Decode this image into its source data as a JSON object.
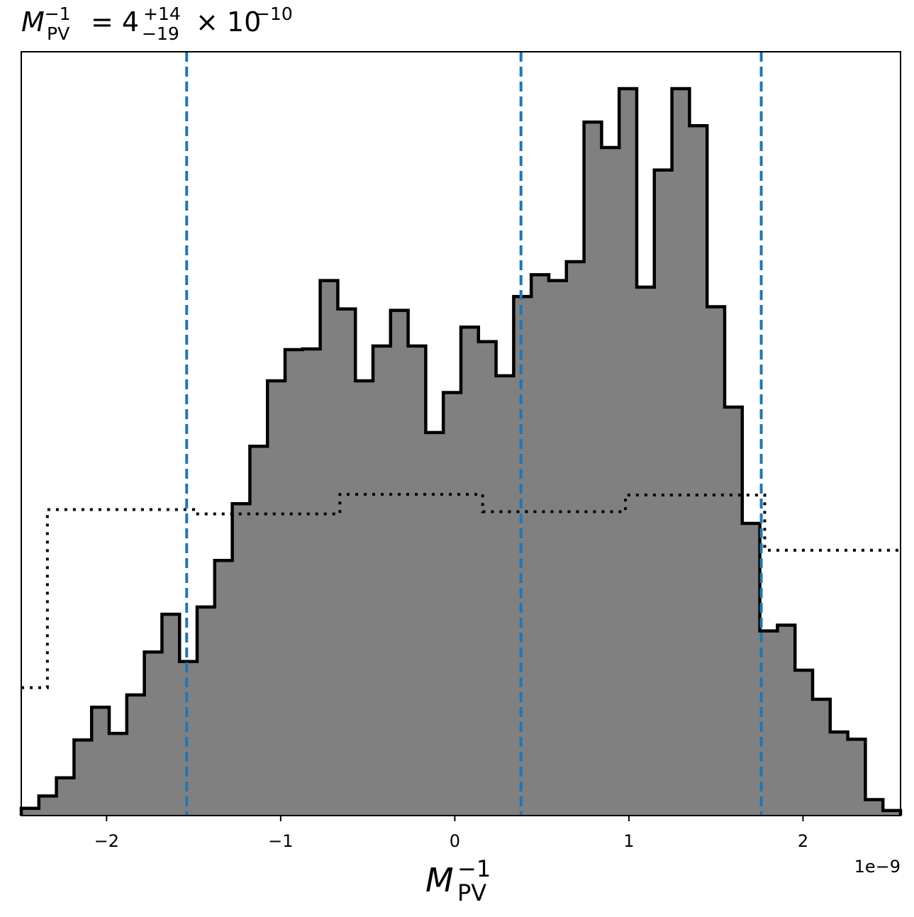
{
  "chart_data": {
    "type": "histogram",
    "title": {
      "symbol": "M",
      "symbol_sup": "−1",
      "symbol_sub": "PV",
      "equals": "= 4",
      "err_plus": "+14",
      "err_minus": "−19",
      "times": "× 10",
      "exponent": "−10"
    },
    "xlabel": {
      "symbol": "M",
      "sup": "−1",
      "sub": "PV"
    },
    "x_offset_label": "1e−9",
    "x_unit": "1e-9",
    "xlim": [
      -2.49,
      2.56
    ],
    "ylim": [
      0,
      1000
    ],
    "yticks_visible": false,
    "grid": false,
    "x_ticks": [
      -2,
      -1,
      0,
      1,
      2
    ],
    "x_tick_labels": [
      "−2",
      "−1",
      "0",
      "1",
      "2"
    ],
    "posterior": {
      "style": "filled step",
      "fill_color": "#808080",
      "edge_color": "#000000",
      "bin_edges": [
        -2.49,
        -2.389,
        -2.288,
        -2.187,
        -2.086,
        -1.985,
        -1.884,
        -1.783,
        -1.682,
        -1.581,
        -1.48,
        -1.379,
        -1.278,
        -1.177,
        -1.076,
        -0.975,
        -0.874,
        -0.773,
        -0.672,
        -0.571,
        -0.47,
        -0.369,
        -0.268,
        -0.167,
        -0.066,
        0.035,
        0.136,
        0.237,
        0.338,
        0.439,
        0.54,
        0.641,
        0.742,
        0.843,
        0.944,
        1.045,
        1.146,
        1.247,
        1.348,
        1.449,
        1.55,
        1.651,
        1.752,
        1.853,
        1.954,
        2.055,
        2.156,
        2.257,
        2.358,
        2.459,
        2.56
      ],
      "counts": [
        10,
        27,
        52,
        104,
        149,
        113,
        166,
        225,
        277,
        212,
        287,
        351,
        429,
        508,
        598,
        641,
        642,
        736,
        697,
        598,
        646,
        695,
        646,
        527,
        582,
        672,
        652,
        605,
        714,
        744,
        736,
        762,
        954,
        919,
        1000,
        727,
        888,
        1000,
        949,
        700,
        562,
        402,
        254,
        262,
        200,
        160,
        115,
        105,
        22,
        7
      ]
    },
    "prior": {
      "style": "dotted step",
      "color": "#000000",
      "bin_edges": [
        -2.49,
        -2.34,
        -1.5,
        -0.66,
        0.16,
        0.98,
        1.78,
        2.56
      ],
      "values": [
        176,
        421,
        415,
        442,
        418,
        441,
        365
      ]
    },
    "quantile_lines": {
      "style": "dashed",
      "color": "#1f77b4",
      "x": [
        -1.54,
        0.38,
        1.76
      ]
    }
  }
}
